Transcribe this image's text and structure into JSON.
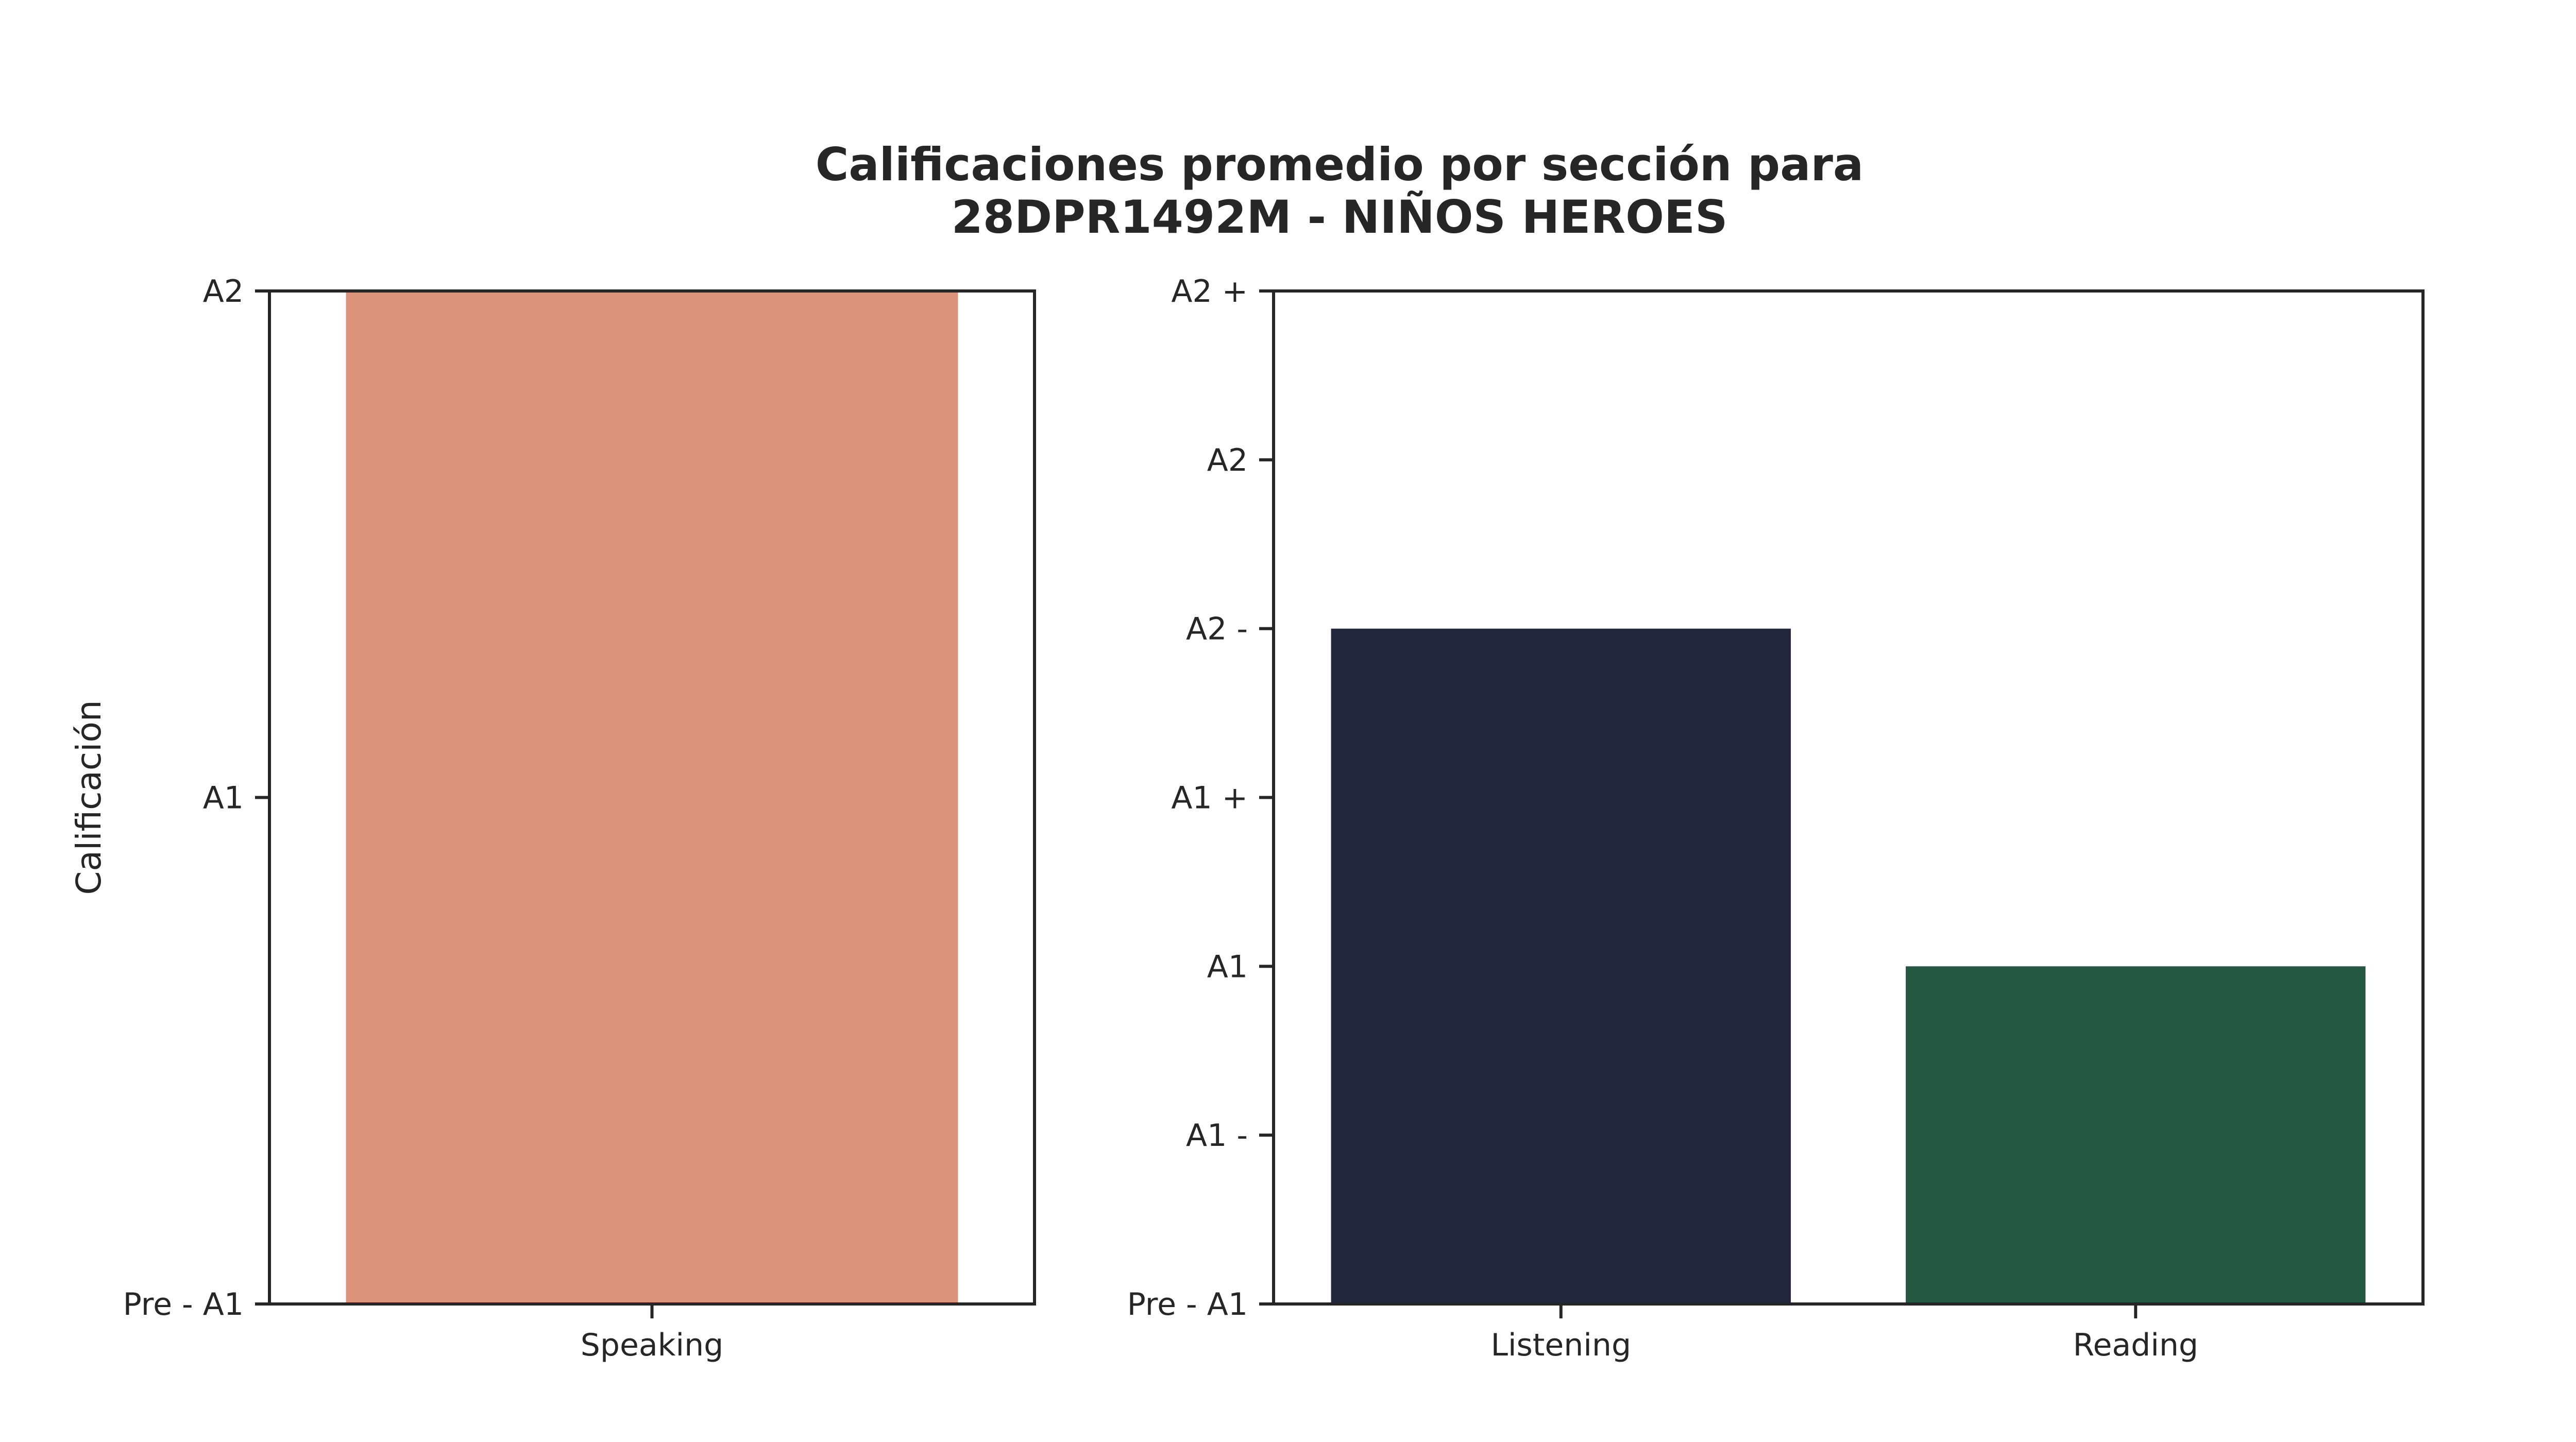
{
  "chart_data": {
    "title": "Calificaciones promedio por sección para",
    "subtitle": "28DPR1492M - NIÑOS HEROES",
    "panels": [
      {
        "type": "bar",
        "ylabel": "Calificación",
        "xlabel": "",
        "categories": [
          "Speaking"
        ],
        "values": [
          2
        ],
        "ylim": [
          0,
          2
        ],
        "yticks": [
          {
            "value": 0,
            "label": "Pre - A1"
          },
          {
            "value": 1,
            "label": "A1"
          },
          {
            "value": 2,
            "label": "A2"
          }
        ],
        "colors": [
          "#da937a"
        ],
        "grid": false
      },
      {
        "type": "bar",
        "ylabel": "",
        "xlabel": "",
        "categories": [
          "Listening",
          "Reading"
        ],
        "values": [
          4,
          2
        ],
        "ylim": [
          0,
          6
        ],
        "yticks": [
          {
            "value": 0,
            "label": "Pre - A1"
          },
          {
            "value": 1,
            "label": "A1 -"
          },
          {
            "value": 2,
            "label": "A1"
          },
          {
            "value": 3,
            "label": "A1 +"
          },
          {
            "value": 4,
            "label": "A2 -"
          },
          {
            "value": 5,
            "label": "A2"
          },
          {
            "value": 6,
            "label": "A2 +"
          }
        ],
        "colors": [
          "#21263d",
          "#245843"
        ],
        "grid": false
      }
    ]
  }
}
